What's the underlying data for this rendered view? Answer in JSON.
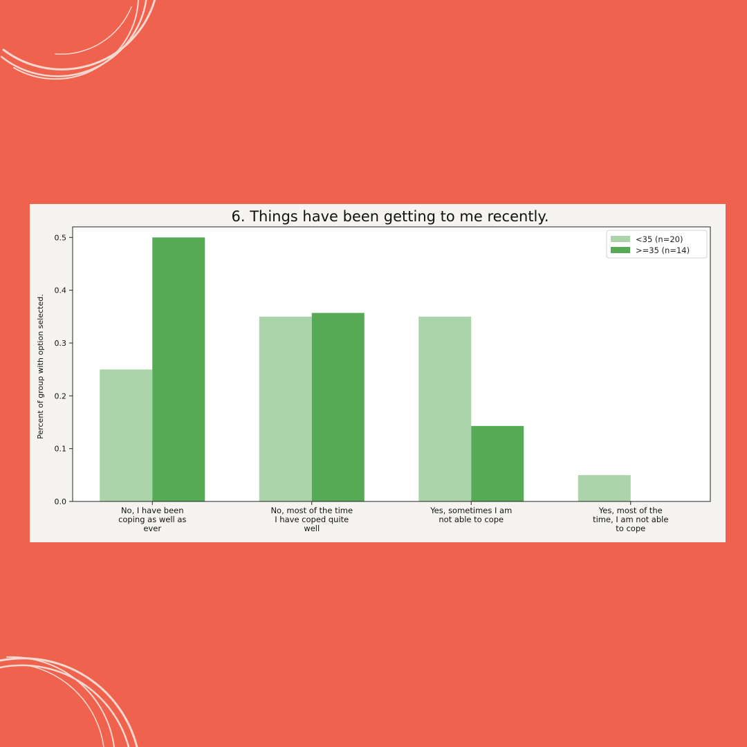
{
  "colors": {
    "background": "#ef634e",
    "card": "#f6f4f1",
    "series_light": "#abd4aa",
    "series_dark": "#56aa56",
    "decor": "#f4d9d3"
  },
  "decor": {
    "top_left": "circle-swirl-icon",
    "bottom_left": "circle-swirl-icon"
  },
  "chart_data": {
    "type": "bar",
    "title": "6. Things have been getting to me recently.",
    "xlabel": "",
    "ylabel": "Percent of group with option selected.",
    "ylim": [
      0,
      0.52
    ],
    "yticks": [
      "0.0",
      "0.1",
      "0.2",
      "0.3",
      "0.4",
      "0.5"
    ],
    "categories": [
      [
        "No, I have been",
        "coping as well as",
        "ever"
      ],
      [
        "No, most of the time",
        "I have coped quite",
        "well"
      ],
      [
        "Yes, sometimes I am",
        "not able to cope"
      ],
      [
        "Yes, most of the",
        "time, I am not able",
        "to cope"
      ]
    ],
    "series": [
      {
        "name": "<35 (n=20)",
        "values": [
          0.25,
          0.35,
          0.35,
          0.05
        ]
      },
      {
        "name": ">=35 (n=14)",
        "values": [
          0.5,
          0.357,
          0.143,
          0.0
        ]
      }
    ],
    "grid": false,
    "legend": "top-right"
  }
}
